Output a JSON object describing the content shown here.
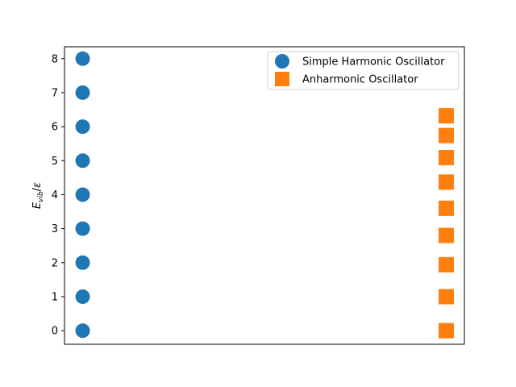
{
  "chart_data": {
    "type": "scatter",
    "title": "",
    "xlabel": "",
    "ylabel": "E_vib/ε",
    "x_ticks_visible": false,
    "xlim": [
      -0.05,
      1.05
    ],
    "ylim": [
      -0.4,
      8.35
    ],
    "yticks": [
      0,
      1,
      2,
      3,
      4,
      5,
      6,
      7,
      8
    ],
    "grid": false,
    "legend_position": "upper right",
    "series": [
      {
        "name": "Simple Harmonic Oscillator",
        "marker": "circle",
        "color": "#1f77b4",
        "x": [
          0,
          0,
          0,
          0,
          0,
          0,
          0,
          0,
          0
        ],
        "y": [
          0,
          1,
          2,
          3,
          4,
          5,
          6,
          7,
          8
        ]
      },
      {
        "name": "Anharmonic Oscillator",
        "marker": "square",
        "color": "#ff7f0e",
        "x": [
          1,
          1,
          1,
          1,
          1,
          1,
          1,
          1,
          1
        ],
        "y": [
          0,
          1.0,
          1.94,
          2.8,
          3.6,
          4.37,
          5.09,
          5.74,
          6.32
        ]
      }
    ]
  }
}
